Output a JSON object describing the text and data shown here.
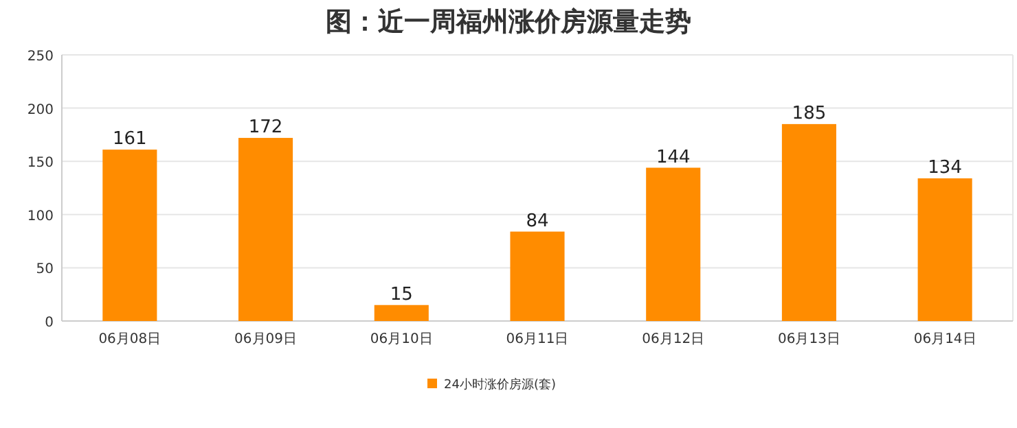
{
  "chart_data": {
    "type": "bar",
    "title": "图：近一周福州涨价房源量走势",
    "categories": [
      "06月08日",
      "06月09日",
      "06月10日",
      "06月11日",
      "06月12日",
      "06月13日",
      "06月14日"
    ],
    "series": [
      {
        "name": "24小时涨价房源(套)",
        "color": "#ff8c00",
        "values": [
          161,
          172,
          15,
          84,
          144,
          185,
          134
        ]
      }
    ],
    "ylim": [
      0,
      250
    ],
    "yticks": [
      0,
      50,
      100,
      150,
      200,
      250
    ],
    "grid": "y",
    "legend": "bottom",
    "data_labels": true
  }
}
